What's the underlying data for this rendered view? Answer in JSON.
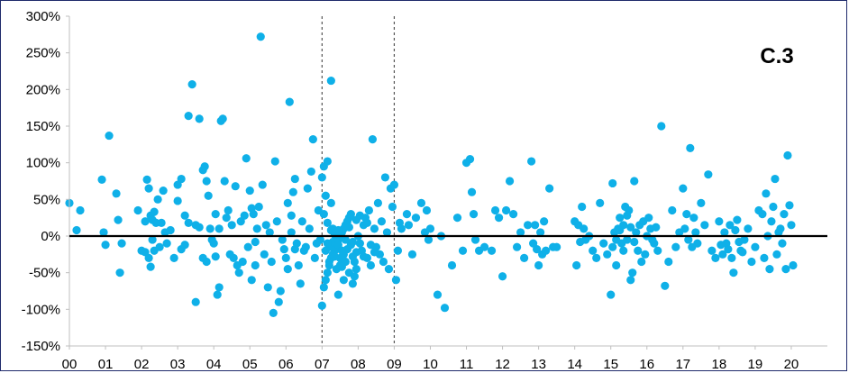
{
  "chart_data": {
    "type": "scatter",
    "annotation": "C.3",
    "y_unit": "%",
    "ylim": [
      -150,
      300
    ],
    "xlim": [
      2000,
      2021
    ],
    "y_ticks": [
      "300%",
      "250%",
      "200%",
      "150%",
      "100%",
      "50%",
      "0%",
      "-50%",
      "-100%",
      "-150%"
    ],
    "y_tick_values": [
      300,
      250,
      200,
      150,
      100,
      50,
      0,
      -50,
      -100,
      -150
    ],
    "x_ticks": [
      "00",
      "01",
      "02",
      "03",
      "04",
      "05",
      "06",
      "07",
      "08",
      "09",
      "10",
      "11",
      "12",
      "13",
      "14",
      "15",
      "16",
      "17",
      "18",
      "19",
      "20"
    ],
    "x_tick_values": [
      2000,
      2001,
      2002,
      2003,
      2004,
      2005,
      2006,
      2007,
      2008,
      2009,
      2010,
      2011,
      2012,
      2013,
      2014,
      2015,
      2016,
      2017,
      2018,
      2019,
      2020
    ],
    "reference_lines_x": [
      2007,
      2009
    ],
    "zero_line": 0,
    "marker_color": "#0fb0e8",
    "points": [
      [
        2000.0,
        45
      ],
      [
        2000.3,
        35
      ],
      [
        2000.2,
        8
      ],
      [
        2000.9,
        77
      ],
      [
        2001.1,
        137
      ],
      [
        2000.95,
        5
      ],
      [
        2001.0,
        -12
      ],
      [
        2001.3,
        58
      ],
      [
        2001.35,
        22
      ],
      [
        2001.4,
        -50
      ],
      [
        2001.9,
        35
      ],
      [
        2002.1,
        20
      ],
      [
        2002.15,
        77
      ],
      [
        2002.2,
        65
      ],
      [
        2002.25,
        28
      ],
      [
        2002.3,
        22
      ],
      [
        2002.35,
        33
      ],
      [
        2002.4,
        18
      ],
      [
        2002.45,
        50
      ],
      [
        2002.6,
        62
      ],
      [
        2002.0,
        -20
      ],
      [
        2002.1,
        -22
      ],
      [
        2002.2,
        -30
      ],
      [
        2002.25,
        -42
      ],
      [
        2002.3,
        -5
      ],
      [
        2002.35,
        -20
      ],
      [
        2002.5,
        -15
      ],
      [
        2002.7,
        -10
      ],
      [
        2002.8,
        8
      ],
      [
        2002.9,
        -30
      ],
      [
        2003.1,
        78
      ],
      [
        2003.0,
        70
      ],
      [
        2003.2,
        28
      ],
      [
        2003.3,
        164
      ],
      [
        2003.4,
        207
      ],
      [
        2003.5,
        15
      ],
      [
        2003.6,
        160
      ],
      [
        2003.7,
        90
      ],
      [
        2003.75,
        95
      ],
      [
        2003.8,
        75
      ],
      [
        2003.1,
        -18
      ],
      [
        2003.2,
        -12
      ],
      [
        2003.3,
        18
      ],
      [
        2003.5,
        -90
      ],
      [
        2003.7,
        -30
      ],
      [
        2003.8,
        -35
      ],
      [
        2003.9,
        10
      ],
      [
        2003.85,
        55
      ],
      [
        2003.6,
        12
      ],
      [
        2003.0,
        48
      ],
      [
        2004.0,
        -10
      ],
      [
        2004.05,
        -28
      ],
      [
        2004.1,
        -80
      ],
      [
        2004.15,
        -70
      ],
      [
        2004.2,
        157
      ],
      [
        2004.25,
        160
      ],
      [
        2004.3,
        75
      ],
      [
        2004.35,
        25
      ],
      [
        2004.4,
        35
      ],
      [
        2004.45,
        -25
      ],
      [
        2004.5,
        15
      ],
      [
        2004.55,
        -30
      ],
      [
        2004.6,
        68
      ],
      [
        2004.65,
        -40
      ],
      [
        2004.7,
        -50
      ],
      [
        2004.75,
        20
      ],
      [
        2004.8,
        -35
      ],
      [
        2004.85,
        28
      ],
      [
        2004.9,
        106
      ],
      [
        2004.95,
        -15
      ],
      [
        2005.0,
        62
      ],
      [
        2005.05,
        -60
      ],
      [
        2005.1,
        30
      ],
      [
        2005.15,
        -40
      ],
      [
        2005.2,
        10
      ],
      [
        2005.25,
        40
      ],
      [
        2005.3,
        272
      ],
      [
        2005.35,
        70
      ],
      [
        2005.4,
        -25
      ],
      [
        2005.45,
        15
      ],
      [
        2005.5,
        -70
      ],
      [
        2005.55,
        5
      ],
      [
        2005.6,
        -35
      ],
      [
        2005.65,
        -105
      ],
      [
        2005.7,
        102
      ],
      [
        2005.75,
        20
      ],
      [
        2005.8,
        -90
      ],
      [
        2005.85,
        -75
      ],
      [
        2005.9,
        -5
      ],
      [
        2005.95,
        -18
      ],
      [
        2006.0,
        -30
      ],
      [
        2006.05,
        45
      ],
      [
        2006.1,
        183
      ],
      [
        2006.15,
        5
      ],
      [
        2006.2,
        60
      ],
      [
        2006.25,
        78
      ],
      [
        2006.3,
        -10
      ],
      [
        2006.35,
        -40
      ],
      [
        2006.4,
        -65
      ],
      [
        2006.45,
        20
      ],
      [
        2006.5,
        -20
      ],
      [
        2006.55,
        -15
      ],
      [
        2006.6,
        65
      ],
      [
        2006.65,
        10
      ],
      [
        2006.7,
        88
      ],
      [
        2006.75,
        132
      ],
      [
        2006.8,
        -30
      ],
      [
        2006.85,
        -10
      ],
      [
        2006.9,
        35
      ],
      [
        2006.95,
        -5
      ],
      [
        2007.0,
        80
      ],
      [
        2007.05,
        95
      ],
      [
        2007.1,
        55
      ],
      [
        2007.15,
        102
      ],
      [
        2007.2,
        -35
      ],
      [
        2007.25,
        212
      ],
      [
        2007.3,
        10
      ],
      [
        2007.35,
        -20
      ],
      [
        2007.4,
        -45
      ],
      [
        2007.45,
        -80
      ],
      [
        2007.0,
        -95
      ],
      [
        2007.05,
        -70
      ],
      [
        2007.1,
        -60
      ],
      [
        2007.15,
        -50
      ],
      [
        2007.2,
        -40
      ],
      [
        2007.25,
        -30
      ],
      [
        2007.3,
        -25
      ],
      [
        2007.35,
        -15
      ],
      [
        2007.4,
        -10
      ],
      [
        2007.45,
        -5
      ],
      [
        2007.5,
        0
      ],
      [
        2007.55,
        5
      ],
      [
        2007.6,
        10
      ],
      [
        2007.65,
        15
      ],
      [
        2007.7,
        20
      ],
      [
        2007.75,
        25
      ],
      [
        2007.8,
        30
      ],
      [
        2007.85,
        -65
      ],
      [
        2007.9,
        -55
      ],
      [
        2007.95,
        -45
      ],
      [
        2007.1,
        -20
      ],
      [
        2007.2,
        -15
      ],
      [
        2007.3,
        -8
      ],
      [
        2007.4,
        -2
      ],
      [
        2007.5,
        -30
      ],
      [
        2007.6,
        -25
      ],
      [
        2007.7,
        -18
      ],
      [
        2007.8,
        -12
      ],
      [
        2007.9,
        -35
      ],
      [
        2007.5,
        -40
      ],
      [
        2007.15,
        18
      ],
      [
        2007.25,
        8
      ],
      [
        2007.35,
        2
      ],
      [
        2007.45,
        -12
      ],
      [
        2007.55,
        -20
      ],
      [
        2007.65,
        -35
      ],
      [
        2007.75,
        -50
      ],
      [
        2007.85,
        -28
      ],
      [
        2007.95,
        -22
      ],
      [
        2007.6,
        -60
      ],
      [
        2008.0,
        0
      ],
      [
        2008.05,
        -10
      ],
      [
        2008.1,
        -20
      ],
      [
        2008.15,
        15
      ],
      [
        2008.2,
        25
      ],
      [
        2008.25,
        -30
      ],
      [
        2008.3,
        35
      ],
      [
        2008.35,
        -40
      ],
      [
        2008.4,
        132
      ],
      [
        2008.45,
        10
      ],
      [
        2008.5,
        -15
      ],
      [
        2008.55,
        45
      ],
      [
        2008.6,
        -25
      ],
      [
        2008.65,
        20
      ],
      [
        2008.7,
        -35
      ],
      [
        2008.75,
        80
      ],
      [
        2008.8,
        5
      ],
      [
        2008.85,
        -45
      ],
      [
        2008.9,
        65
      ],
      [
        2008.95,
        40
      ],
      [
        2009.0,
        70
      ],
      [
        2009.05,
        -60
      ],
      [
        2009.1,
        -20
      ],
      [
        2009.15,
        18
      ],
      [
        2009.2,
        10
      ],
      [
        2009.35,
        30
      ],
      [
        2009.5,
        -25
      ],
      [
        2009.6,
        25
      ],
      [
        2009.75,
        45
      ],
      [
        2009.85,
        5
      ],
      [
        2010.0,
        10
      ],
      [
        2010.2,
        -80
      ],
      [
        2010.4,
        -98
      ],
      [
        2010.6,
        -40
      ],
      [
        2010.75,
        25
      ],
      [
        2010.9,
        -20
      ],
      [
        2009.9,
        35
      ],
      [
        2009.4,
        15
      ],
      [
        2009.95,
        -5
      ],
      [
        2010.3,
        0
      ],
      [
        2011.0,
        100
      ],
      [
        2011.1,
        105
      ],
      [
        2011.15,
        60
      ],
      [
        2011.2,
        30
      ],
      [
        2011.25,
        -5
      ],
      [
        2011.35,
        -20
      ],
      [
        2011.5,
        -15
      ],
      [
        2011.7,
        -20
      ],
      [
        2011.8,
        35
      ],
      [
        2011.9,
        25
      ],
      [
        2012.0,
        -55
      ],
      [
        2012.1,
        35
      ],
      [
        2012.2,
        75
      ],
      [
        2012.3,
        30
      ],
      [
        2012.4,
        -15
      ],
      [
        2012.5,
        5
      ],
      [
        2012.6,
        -30
      ],
      [
        2012.7,
        15
      ],
      [
        2012.8,
        102
      ],
      [
        2012.9,
        15
      ],
      [
        2013.0,
        -40
      ],
      [
        2013.1,
        -25
      ],
      [
        2013.2,
        -20
      ],
      [
        2013.3,
        65
      ],
      [
        2013.4,
        -15
      ],
      [
        2013.5,
        -15
      ],
      [
        2012.95,
        -18
      ],
      [
        2013.05,
        5
      ],
      [
        2013.15,
        20
      ],
      [
        2012.85,
        -10
      ],
      [
        2014.0,
        20
      ],
      [
        2014.1,
        15
      ],
      [
        2014.2,
        40
      ],
      [
        2014.3,
        -5
      ],
      [
        2014.4,
        0
      ],
      [
        2014.5,
        -20
      ],
      [
        2014.6,
        -30
      ],
      [
        2014.7,
        45
      ],
      [
        2014.8,
        -10
      ],
      [
        2014.9,
        -25
      ],
      [
        2015.0,
        -80
      ],
      [
        2015.05,
        72
      ],
      [
        2015.1,
        5
      ],
      [
        2015.15,
        -40
      ],
      [
        2015.2,
        10
      ],
      [
        2015.25,
        25
      ],
      [
        2015.3,
        -10
      ],
      [
        2015.35,
        15
      ],
      [
        2015.4,
        40
      ],
      [
        2015.45,
        -5
      ],
      [
        2015.5,
        35
      ],
      [
        2015.55,
        -60
      ],
      [
        2015.6,
        -50
      ],
      [
        2015.65,
        75
      ],
      [
        2015.7,
        5
      ],
      [
        2015.75,
        -20
      ],
      [
        2015.8,
        15
      ],
      [
        2015.85,
        -35
      ],
      [
        2015.9,
        20
      ],
      [
        2015.95,
        -25
      ],
      [
        2016.0,
        0
      ],
      [
        2016.1,
        10
      ],
      [
        2016.2,
        -10
      ],
      [
        2016.3,
        -20
      ],
      [
        2016.4,
        150
      ],
      [
        2016.5,
        -68
      ],
      [
        2016.6,
        -35
      ],
      [
        2016.7,
        35
      ],
      [
        2016.8,
        -15
      ],
      [
        2016.9,
        5
      ],
      [
        2017.0,
        65
      ],
      [
        2017.1,
        30
      ],
      [
        2017.2,
        120
      ],
      [
        2017.3,
        25
      ],
      [
        2017.4,
        -10
      ],
      [
        2017.5,
        45
      ],
      [
        2017.6,
        15
      ],
      [
        2017.7,
        84
      ],
      [
        2017.8,
        -20
      ],
      [
        2017.9,
        -30
      ],
      [
        2018.0,
        20
      ],
      [
        2018.1,
        -25
      ],
      [
        2018.2,
        -10
      ],
      [
        2018.3,
        15
      ],
      [
        2018.4,
        -50
      ],
      [
        2018.5,
        22
      ],
      [
        2018.6,
        -20
      ],
      [
        2018.7,
        -5
      ],
      [
        2018.8,
        10
      ],
      [
        2018.9,
        -35
      ],
      [
        2019.0,
        -15
      ],
      [
        2019.1,
        35
      ],
      [
        2019.2,
        30
      ],
      [
        2019.3,
        58
      ],
      [
        2019.4,
        -45
      ],
      [
        2019.5,
        40
      ],
      [
        2019.55,
        78
      ],
      [
        2019.6,
        -25
      ],
      [
        2019.7,
        10
      ],
      [
        2019.75,
        -10
      ],
      [
        2019.8,
        30
      ],
      [
        2019.85,
        -45
      ],
      [
        2019.9,
        110
      ],
      [
        2019.95,
        42
      ],
      [
        2020.0,
        15
      ],
      [
        2020.05,
        -40
      ],
      [
        2019.65,
        5
      ],
      [
        2019.45,
        20
      ],
      [
        2019.35,
        0
      ],
      [
        2019.25,
        -30
      ],
      [
        2003.95,
        -5
      ],
      [
        2004.05,
        30
      ],
      [
        2004.15,
        10
      ],
      [
        2005.05,
        38
      ],
      [
        2005.15,
        -8
      ],
      [
        2006.05,
        -45
      ],
      [
        2006.15,
        28
      ],
      [
        2006.25,
        -18
      ],
      [
        2007.05,
        30
      ],
      [
        2007.15,
        -10
      ],
      [
        2007.25,
        45
      ],
      [
        2007.35,
        -28
      ],
      [
        2007.45,
        8
      ],
      [
        2007.55,
        -42
      ],
      [
        2007.65,
        -5
      ],
      [
        2007.75,
        12
      ],
      [
        2007.85,
        -8
      ],
      [
        2007.95,
        22
      ],
      [
        2008.05,
        28
      ],
      [
        2008.15,
        -28
      ],
      [
        2008.25,
        18
      ],
      [
        2008.35,
        -12
      ],
      [
        2008.45,
        -22
      ],
      [
        2002.55,
        18
      ],
      [
        2002.65,
        5
      ],
      [
        2001.45,
        -10
      ],
      [
        2016.05,
        25
      ],
      [
        2016.15,
        -5
      ],
      [
        2016.25,
        12
      ],
      [
        2017.05,
        10
      ],
      [
        2017.15,
        -5
      ],
      [
        2017.25,
        -15
      ],
      [
        2017.35,
        5
      ],
      [
        2018.05,
        -12
      ],
      [
        2018.15,
        5
      ],
      [
        2018.25,
        -18
      ],
      [
        2018.35,
        -30
      ],
      [
        2018.45,
        8
      ],
      [
        2018.55,
        -8
      ],
      [
        2018.65,
        -22
      ],
      [
        2014.05,
        -40
      ],
      [
        2014.15,
        -8
      ],
      [
        2014.25,
        10
      ],
      [
        2015.05,
        -15
      ],
      [
        2015.15,
        -5
      ],
      [
        2015.25,
        8
      ],
      [
        2015.35,
        -20
      ],
      [
        2015.45,
        28
      ],
      [
        2015.55,
        12
      ],
      [
        2015.65,
        -8
      ]
    ]
  }
}
